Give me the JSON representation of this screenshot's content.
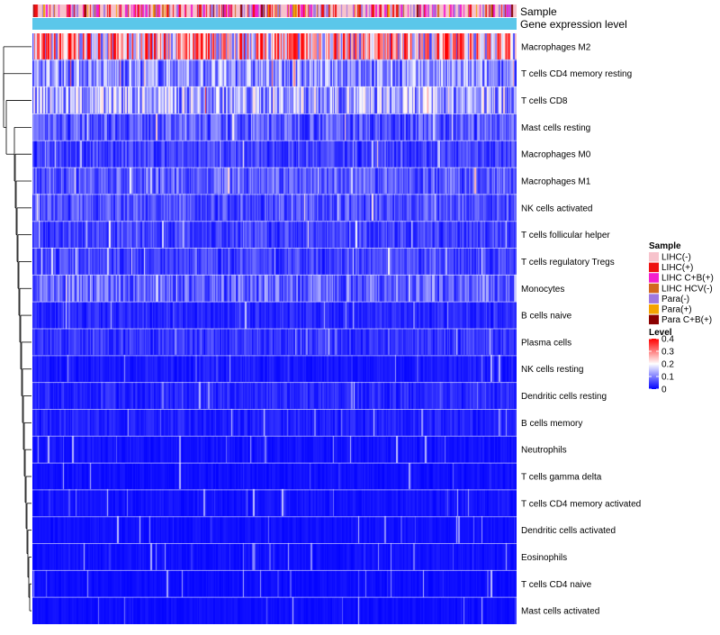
{
  "chart_data": {
    "type": "heatmap",
    "title": "",
    "annotation_tracks": [
      "Sample",
      "Gene expression level"
    ],
    "row_labels": [
      "Macrophages M2",
      "T cells CD4 memory resting",
      "T cells CD8",
      "Mast cells resting",
      "Macrophages M0",
      "Macrophages M1",
      "NK cells activated",
      "T cells follicular helper",
      "T cells regulatory  Tregs",
      "Monocytes",
      "B cells naive",
      "Plasma cells",
      "NK cells resting",
      "Dendritic cells resting",
      "B cells memory",
      "Neutrophils",
      "T cells gamma delta",
      "T cells CD4 memory activated",
      "Dendritic cells activated",
      "Eosinophils",
      "T cells CD4 naive",
      "Mast cells activated"
    ],
    "row_mean_levels": [
      0.25,
      0.11,
      0.13,
      0.07,
      0.05,
      0.07,
      0.06,
      0.05,
      0.05,
      0.08,
      0.03,
      0.04,
      0.02,
      0.03,
      0.025,
      0.015,
      0.012,
      0.015,
      0.012,
      0.012,
      0.01,
      0.01
    ],
    "n_samples": 420,
    "legend_sample": {
      "title": "Sample",
      "categories": [
        "LIHC(-)",
        "LIHC(+)",
        "LIHC C+B(+)",
        "LIHC HCV(-)",
        "Para(-)",
        "Para(+)",
        "Para C+B(+)"
      ],
      "colors": [
        "#f7c3cc",
        "#ee1111",
        "#f31fce",
        "#d2691e",
        "#9f78e0",
        "#f4a300",
        "#8b0000"
      ]
    },
    "legend_level": {
      "title": "Level",
      "ticks": [
        "0.4",
        "0.3",
        "0.2",
        "0.1",
        "0"
      ],
      "range": [
        0,
        0.4
      ],
      "colors": [
        "#0000ff",
        "#ffffff",
        "#ff0000"
      ]
    },
    "gene_expression_color": "#5bc7ea"
  }
}
